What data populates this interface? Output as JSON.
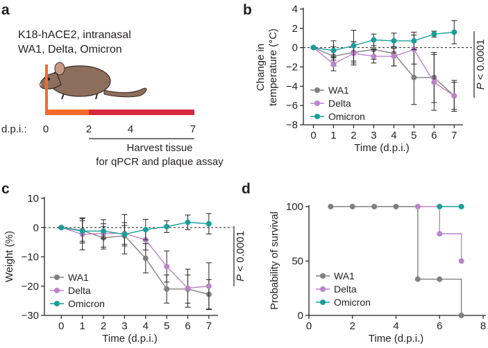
{
  "figure": {
    "panel_labels": [
      "a",
      "b",
      "c",
      "d"
    ],
    "schematic": {
      "line1": "K18-hACE2, intranasal",
      "line2": "WA1, Delta, Omicron",
      "dpi_label": "d.p.i.:",
      "dpi_ticks": [
        "0",
        "2",
        "4",
        "7"
      ],
      "harvest_line1": "Harvest tissue",
      "harvest_line2": "for qPCR and plaque assay"
    },
    "colors": {
      "WA1": "#808080",
      "Delta": "#bb83c9",
      "Omicron": "#199e9a",
      "axis": "#231f20",
      "timeline_early": "#f26b2a",
      "timeline_late": "#d7283e",
      "mouse": "#8d6e5d"
    }
  },
  "chart_data": [
    {
      "type": "line",
      "panel": "b",
      "ylabel_line1": "Change in",
      "ylabel_line2": "temperature (°C)",
      "xlabel": "Time (d.p.i.)",
      "x": [
        0,
        1,
        2,
        3,
        4,
        5,
        6,
        7
      ],
      "xticks": [
        "0",
        "1",
        "2",
        "3",
        "4",
        "5",
        "6",
        "7"
      ],
      "ylim": [
        -8,
        4
      ],
      "yticks": [
        "−8",
        "−6",
        "−4",
        "−2",
        "0",
        "2",
        "4"
      ],
      "stat": "P < 0.0001",
      "series": [
        {
          "name": "WA1",
          "values": [
            0,
            -0.9,
            -0.5,
            -0.2,
            -0.6,
            -3.1,
            -3.1,
            -5.0
          ],
          "err": [
            0.1,
            1.0,
            1.1,
            1.0,
            1.3,
            2.8,
            2.6,
            1.4
          ]
        },
        {
          "name": "Delta",
          "values": [
            0,
            -1.7,
            -0.6,
            -0.9,
            -0.9,
            -0.2,
            -3.6,
            -5.0
          ],
          "err": [
            0.1,
            0.7,
            1.2,
            0.7,
            1.0,
            1.5,
            2.9,
            1.6
          ]
        },
        {
          "name": "Omicron",
          "values": [
            0,
            -0.3,
            0.2,
            0.8,
            0.7,
            0.7,
            1.4,
            1.6
          ],
          "err": [
            0.1,
            1.0,
            1.6,
            0.6,
            0.8,
            0.9,
            0.3,
            1.2
          ]
        }
      ]
    },
    {
      "type": "line",
      "panel": "c",
      "ylabel": "Weight (%)",
      "xlabel": "Time (d.p.i.)",
      "x": [
        0,
        1,
        2,
        3,
        4,
        5,
        6,
        7
      ],
      "xticks": [
        "0",
        "1",
        "2",
        "3",
        "4",
        "5",
        "6",
        "7"
      ],
      "ylim": [
        -30,
        10
      ],
      "yticks": [
        "−30",
        "−20",
        "−10",
        "0",
        "10"
      ],
      "stat": "P < 0.0001",
      "series": [
        {
          "name": "WA1",
          "values": [
            0,
            -1.0,
            -3.5,
            -2.8,
            -10.5,
            -21.0,
            -21.0,
            -22.8
          ],
          "err": [
            0.2,
            4.3,
            3.8,
            3.5,
            5.0,
            4.8,
            4.8,
            5.0
          ]
        },
        {
          "name": "Delta",
          "values": [
            0,
            -2.3,
            -2.0,
            -2.0,
            -4.2,
            -13.3,
            -20.7,
            -20.0
          ],
          "err": [
            0.2,
            5.3,
            4.7,
            3.7,
            3.5,
            5.3,
            6.5,
            8.0
          ]
        },
        {
          "name": "Omicron",
          "values": [
            0,
            -1.2,
            -1.2,
            -2.3,
            -0.7,
            0.3,
            1.8,
            1.3
          ],
          "err": [
            0.2,
            3.5,
            2.5,
            6.7,
            3.5,
            2.0,
            2.5,
            3.5
          ]
        }
      ]
    },
    {
      "type": "line",
      "panel": "d",
      "ylabel": "Probability of survival",
      "xlabel": "Time (d.p.i.)",
      "xlim": [
        0,
        8
      ],
      "xticks": [
        "0",
        "2",
        "4",
        "6",
        "8"
      ],
      "ylim": [
        0,
        100
      ],
      "yticks": [
        "0",
        "50",
        "100"
      ],
      "series": [
        {
          "name": "WA1",
          "x": [
            1,
            2,
            3,
            4,
            5,
            6,
            7
          ],
          "values": [
            100,
            100,
            100,
            100,
            33.3,
            33.3,
            0
          ]
        },
        {
          "name": "Delta",
          "x": [
            5,
            6,
            7
          ],
          "values": [
            100,
            75,
            50
          ]
        },
        {
          "name": "Omicron",
          "x": [
            6,
            7
          ],
          "values": [
            100,
            100
          ]
        }
      ]
    }
  ]
}
